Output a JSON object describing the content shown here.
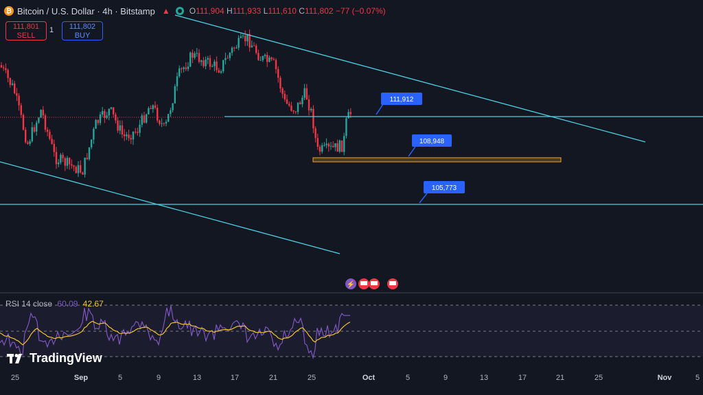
{
  "header": {
    "symbol_title": "Bitcoin / U.S. Dollar · 4h · Bitstamp",
    "ohlc": [
      {
        "k": "O",
        "v": "111,904"
      },
      {
        "k": "H",
        "v": "111,933"
      },
      {
        "k": "L",
        "v": "111,610"
      },
      {
        "k": "C",
        "v": "111,802"
      }
    ],
    "change": "−77 (−0.07%)"
  },
  "trade": {
    "sell_price": "111,801",
    "sell_label": "SELL",
    "spread": "1",
    "buy_price": "111,802",
    "buy_label": "BUY"
  },
  "annotations": [
    "111,912",
    "108,948",
    "105,773"
  ],
  "rsi": {
    "label": "RSI 14 close",
    "value1": "60.09",
    "value2": "42.67"
  },
  "watermark": "TradingView",
  "x_axis": [
    {
      "label": "25",
      "bold": false
    },
    {
      "label": "Sep",
      "bold": true
    },
    {
      "label": "5",
      "bold": false
    },
    {
      "label": "9",
      "bold": false
    },
    {
      "label": "13",
      "bold": false
    },
    {
      "label": "17",
      "bold": false
    },
    {
      "label": "21",
      "bold": false
    },
    {
      "label": "25",
      "bold": false
    },
    {
      "label": "Oct",
      "bold": true
    },
    {
      "label": "5",
      "bold": false
    },
    {
      "label": "9",
      "bold": false
    },
    {
      "label": "13",
      "bold": false
    },
    {
      "label": "17",
      "bold": false
    },
    {
      "label": "21",
      "bold": false
    },
    {
      "label": "25",
      "bold": false
    },
    {
      "label": "Nov",
      "bold": true
    },
    {
      "label": "5",
      "bold": false
    }
  ],
  "colors": {
    "up": "#26a69a",
    "down": "#f23645",
    "line": "#4dd0e1",
    "label_bg": "#2962ff",
    "zone": "#f5a623",
    "rsi": "#7e57c2",
    "rsi_ma": "#f2c230"
  },
  "icons": [
    "bitcoin-icon",
    "market-status-icon",
    "alert-icon",
    "lightning-icon",
    "us-flag-icon"
  ]
}
